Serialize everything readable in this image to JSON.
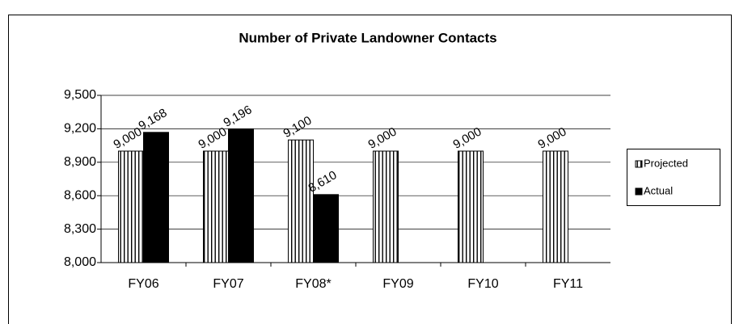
{
  "chart_data": {
    "type": "bar",
    "title": "Number of Private Landowner Contacts",
    "categories": [
      "FY06",
      "FY07",
      "FY08*",
      "FY09",
      "FY10",
      "FY11"
    ],
    "series": [
      {
        "name": "Projected",
        "color": "#ffffff",
        "pattern": "vertical-stripes",
        "values": [
          9000,
          9000,
          9100,
          9000,
          9000,
          9000
        ],
        "value_labels": [
          "9,000",
          "9,000",
          "9,100",
          "9,000",
          "9,000",
          "9,000"
        ]
      },
      {
        "name": "Actual",
        "color": "#000000",
        "values": [
          9168,
          9196,
          8610,
          null,
          null,
          null
        ],
        "value_labels": [
          "9,168",
          "9,196",
          "8,610",
          null,
          null,
          null
        ]
      }
    ],
    "ylim": [
      8000,
      9500
    ],
    "yticks": [
      {
        "value": 8000,
        "label": "8,000"
      },
      {
        "value": 8300,
        "label": "8,300"
      },
      {
        "value": 8600,
        "label": "8,600"
      },
      {
        "value": 8900,
        "label": "8,900"
      },
      {
        "value": 9200,
        "label": "9,200"
      },
      {
        "value": 9500,
        "label": "9,500"
      }
    ],
    "grid": true,
    "legend": "right"
  }
}
